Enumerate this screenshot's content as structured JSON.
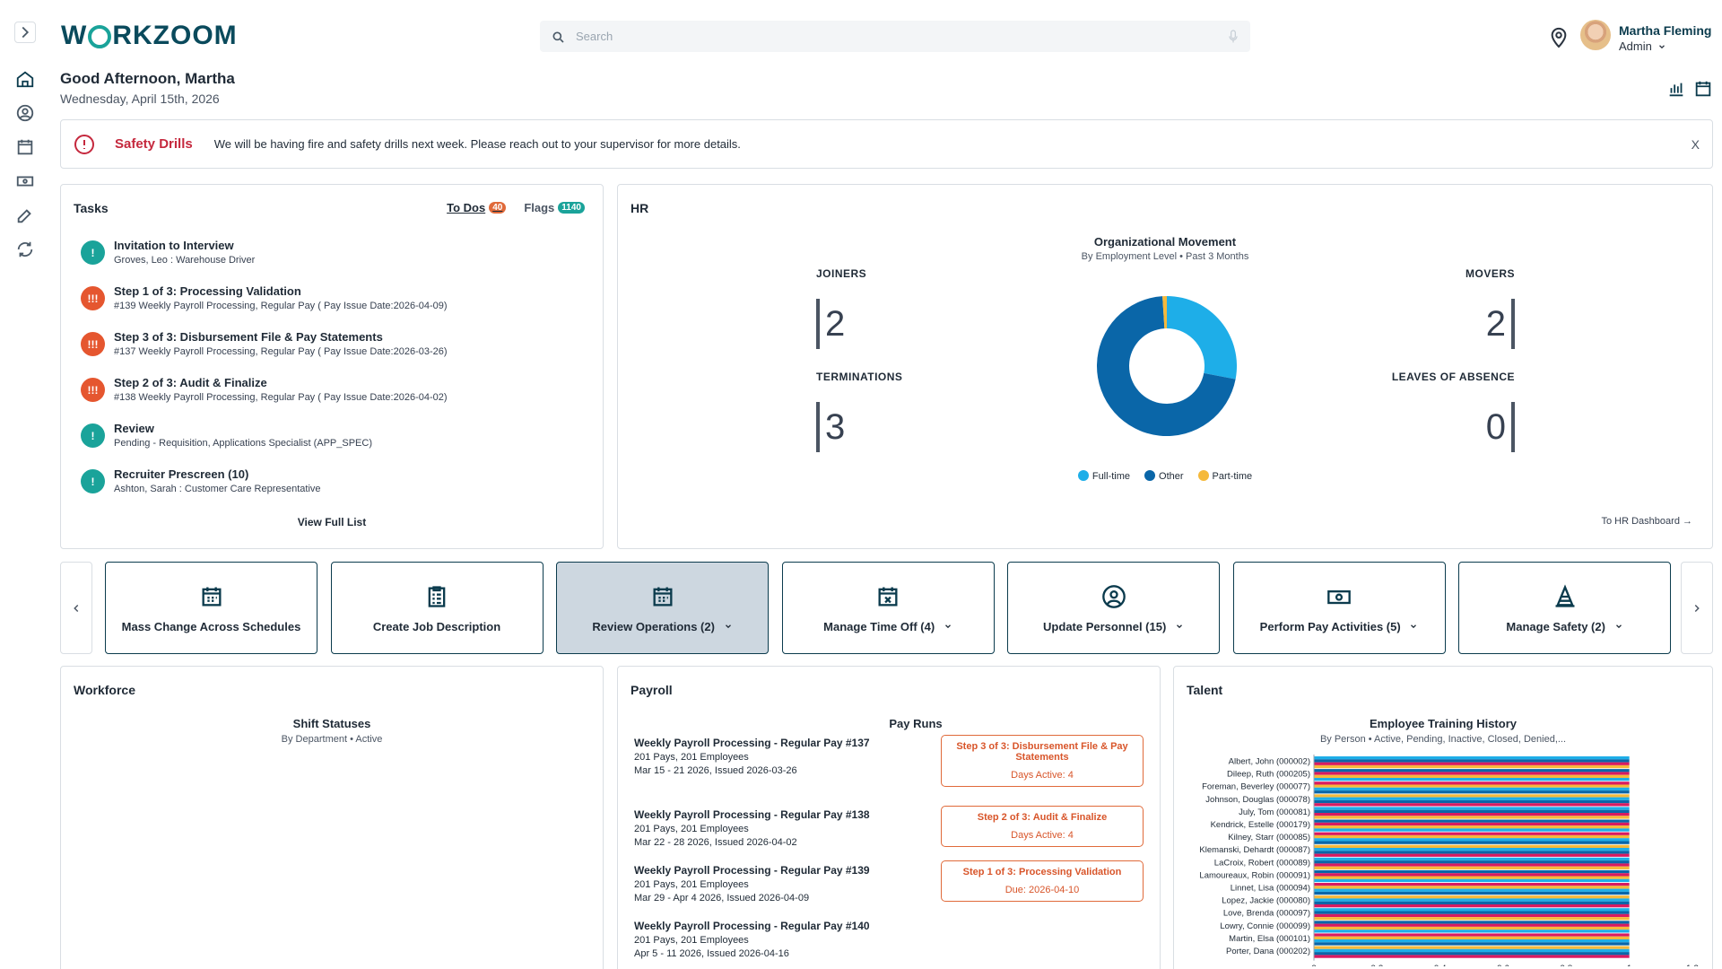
{
  "brand": {
    "logo_text": "WORKZOOM"
  },
  "search": {
    "placeholder": "Search"
  },
  "user": {
    "name": "Martha Fleming",
    "role": "Admin"
  },
  "greeting": "Good Afternoon, Martha",
  "date": "Wednesday, April 15th, 2026",
  "rail": [
    "chevron-right-icon",
    "home-icon",
    "user-icon",
    "calendar-icon",
    "money-icon",
    "edit-icon",
    "sync-icon"
  ],
  "alert": {
    "title": "Safety Drills",
    "message": "We will be having fire and safety drills next week. Please reach out to your supervisor for more details.",
    "close": "X"
  },
  "tasks": {
    "title": "Tasks",
    "tabs": [
      {
        "label": "To Dos",
        "count": "40",
        "color": "#e06a3a"
      },
      {
        "label": "Flags",
        "count": "1140",
        "color": "#1aa39a"
      }
    ],
    "items": [
      {
        "title": "Invitation to Interview",
        "detail": "Groves, Leo : Warehouse Driver",
        "type": "!",
        "color": "#1aa39a"
      },
      {
        "title": "Step 1 of 3: Processing Validation",
        "detail": "#139 Weekly Payroll Processing, Regular Pay ( Pay Issue Date:2026-04-09)",
        "type": "!!!",
        "color": "#e5562f"
      },
      {
        "title": "Step 3 of 3: Disbursement File & Pay Statements",
        "detail": "#137 Weekly Payroll Processing, Regular Pay ( Pay Issue Date:2026-03-26)",
        "type": "!!!",
        "color": "#e5562f"
      },
      {
        "title": "Step 2 of 3: Audit & Finalize",
        "detail": "#138 Weekly Payroll Processing, Regular Pay ( Pay Issue Date:2026-04-02)",
        "type": "!!!",
        "color": "#e5562f"
      },
      {
        "title": "Review",
        "detail": "Pending - Requisition, Applications Specialist (APP_SPEC)",
        "type": "!",
        "color": "#1aa39a"
      },
      {
        "title": "Recruiter Prescreen (10)",
        "detail": "Ashton, Sarah : Customer Care Representative",
        "type": "!",
        "color": "#1aa39a"
      }
    ],
    "view_full": "View Full List"
  },
  "hr": {
    "title": "HR",
    "chart_title": "Organizational Movement",
    "chart_sub": "By Employment Level   •   Past 3 Months",
    "metrics": {
      "joiners_label": "JOINERS",
      "joiners": "2",
      "terminations_label": "TERMINATIONS",
      "terminations": "3",
      "movers_label": "MOVERS",
      "movers": "2",
      "loa_label": "LEAVES OF ABSENCE",
      "loa": "0"
    },
    "legend": [
      {
        "name": "Full-time",
        "color": "#1eaee8"
      },
      {
        "name": "Other",
        "color": "#0a66a8"
      },
      {
        "name": "Part-time",
        "color": "#f5b93b"
      }
    ],
    "link": "To HR Dashboard →"
  },
  "chart_data": [
    {
      "type": "pie",
      "categories": [
        "Full-time",
        "Other",
        "Part-time"
      ],
      "values": [
        28,
        71,
        1
      ]
    },
    {
      "type": "bar",
      "title": "Employee Training History",
      "categories": [
        "Albert, John (000002)",
        "Dileep, Ruth (000205)",
        "Foreman, Beverley (000077)",
        "Johnson, Douglas (000078)",
        "July, Tom (000081)",
        "Kendrick, Estelle (000179)",
        "Kilney, Starr (000085)",
        "Klemanski, Dehardt (000087)",
        "LaCroix, Robert (000089)",
        "Lamoureaux, Robin (000091)",
        "Linnet, Lisa (000094)",
        "Lopez, Jackie (000080)",
        "Love, Brenda (000097)",
        "Lowry, Connie (000099)",
        "Martin, Elsa (000101)",
        "Porter, Dana (000202)"
      ],
      "series_colors": [
        "#1eaee8",
        "#0a66a8",
        "#d81b60",
        "#f5b93b"
      ],
      "values": [
        1,
        1,
        1,
        1,
        1,
        1,
        1,
        1,
        1,
        1,
        1,
        1,
        1,
        1,
        1,
        1
      ],
      "xlim": [
        0,
        1.2
      ],
      "xticks": [
        "0",
        "0.2",
        "0.4",
        "0.6",
        "0.8",
        "1",
        "1.2"
      ]
    }
  ],
  "quick_actions": [
    {
      "label": "Mass Change Across Schedules",
      "icon": "calendar-icon",
      "active": false
    },
    {
      "label": "Create Job Description",
      "icon": "clipboard-icon",
      "active": false
    },
    {
      "label": "Review Operations (2)",
      "icon": "calendar-icon",
      "active": true,
      "chev": true
    },
    {
      "label": "Manage Time Off (4)",
      "icon": "calendar-x-icon",
      "active": false,
      "chev": true
    },
    {
      "label": "Update Personnel (15)",
      "icon": "user-circle-icon",
      "active": false,
      "chev": true
    },
    {
      "label": "Perform Pay Activities (5)",
      "icon": "money-icon",
      "active": false,
      "chev": true
    },
    {
      "label": "Manage Safety (2)",
      "icon": "cone-icon",
      "active": false,
      "chev": true
    }
  ],
  "workforce": {
    "title": "Workforce",
    "chart_title": "Shift Statuses",
    "chart_sub": "By Department   •   Active"
  },
  "payroll": {
    "title": "Payroll",
    "chart_title": "Pay Runs",
    "runs": [
      {
        "name": "Weekly Payroll Processing - Regular Pay #137",
        "pays": "201 Pays, 201 Employees",
        "dates": "Mar 15 - 21 2026, Issued 2026-03-26"
      },
      {
        "name": "Weekly Payroll Processing - Regular Pay #138",
        "pays": "201 Pays, 201 Employees",
        "dates": "Mar 22 - 28 2026, Issued 2026-04-02"
      },
      {
        "name": "Weekly Payroll Processing - Regular Pay #139",
        "pays": "201 Pays, 201 Employees",
        "dates": "Mar 29 - Apr 4 2026, Issued 2026-04-09"
      },
      {
        "name": "Weekly Payroll Processing - Regular Pay #140",
        "pays": "201 Pays, 201 Employees",
        "dates": "Apr 5 - 11 2026, Issued 2026-04-16"
      }
    ],
    "steps": [
      {
        "label": "Step 3 of 3: Disbursement File & Pay Statements",
        "status": "Days Active: 4"
      },
      {
        "label": "Step 2 of 3: Audit & Finalize",
        "status": "Days Active: 4"
      },
      {
        "label": "Step 1 of 3: Processing Validation",
        "status": "Due: 2026-04-10"
      }
    ]
  },
  "talent": {
    "title": "Talent",
    "chart_title": "Employee Training History",
    "chart_sub": "By Person   •   Active, Pending, Inactive, Closed, Denied,..."
  }
}
